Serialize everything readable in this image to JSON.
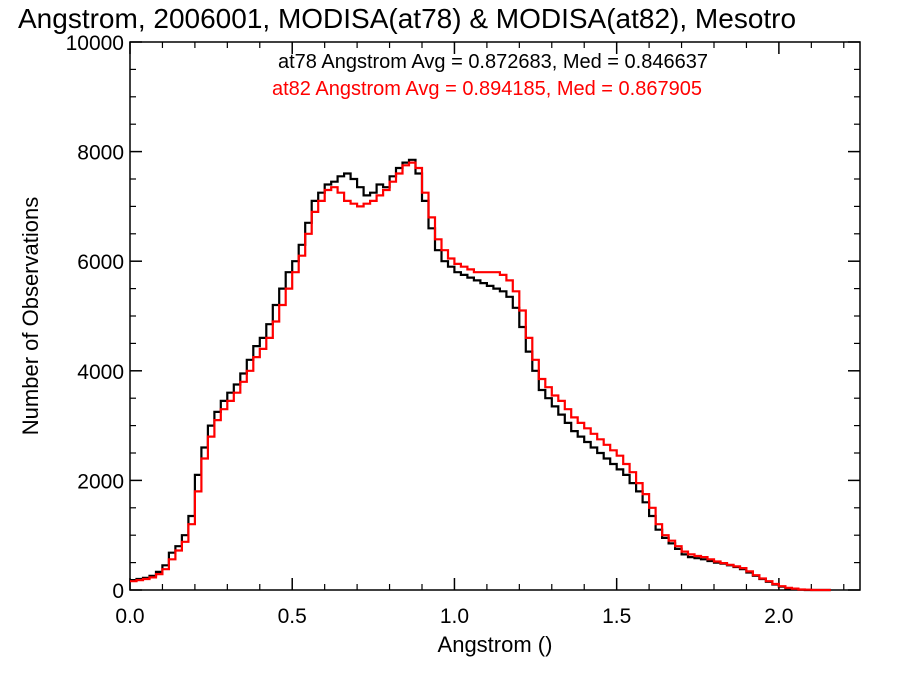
{
  "chart_data": {
    "type": "line",
    "step": true,
    "title": "Angstrom, 2006001, MODISA(at78) & MODISA(at82), Mesotro",
    "xlabel": "Angstrom ()",
    "ylabel": "Number of Observations",
    "xlim": [
      0.0,
      2.25
    ],
    "ylim": [
      0,
      10000
    ],
    "x_ticks": [
      0.0,
      0.5,
      1.0,
      1.5,
      2.0
    ],
    "x_tick_labels": [
      "0.0",
      "0.5",
      "1.0",
      "1.5",
      "2.0"
    ],
    "y_ticks": [
      0,
      2000,
      4000,
      6000,
      8000,
      10000
    ],
    "y_tick_labels": [
      "0",
      "2000",
      "4000",
      "6000",
      "8000",
      "10000"
    ],
    "grid": false,
    "annotations": [
      {
        "text": "at78 Angstrom Avg = 0.872683, Med = 0.846637",
        "color": "#000000"
      },
      {
        "text": "at82 Angstrom Avg = 0.894185, Med = 0.867905",
        "color": "#ff0000"
      }
    ],
    "series": [
      {
        "color": "#000000",
        "x": [
          0.0,
          0.02,
          0.04,
          0.06,
          0.08,
          0.1,
          0.12,
          0.14,
          0.16,
          0.18,
          0.2,
          0.22,
          0.24,
          0.26,
          0.28,
          0.3,
          0.32,
          0.34,
          0.36,
          0.38,
          0.4,
          0.42,
          0.44,
          0.46,
          0.48,
          0.5,
          0.52,
          0.54,
          0.56,
          0.58,
          0.6,
          0.62,
          0.64,
          0.66,
          0.68,
          0.7,
          0.72,
          0.74,
          0.76,
          0.78,
          0.8,
          0.82,
          0.84,
          0.86,
          0.88,
          0.9,
          0.92,
          0.94,
          0.96,
          0.98,
          1.0,
          1.02,
          1.04,
          1.06,
          1.08,
          1.1,
          1.12,
          1.14,
          1.16,
          1.18,
          1.2,
          1.22,
          1.24,
          1.26,
          1.28,
          1.3,
          1.32,
          1.34,
          1.36,
          1.38,
          1.4,
          1.42,
          1.44,
          1.46,
          1.48,
          1.5,
          1.52,
          1.54,
          1.56,
          1.58,
          1.6,
          1.62,
          1.64,
          1.66,
          1.68,
          1.7,
          1.72,
          1.74,
          1.76,
          1.78,
          1.8,
          1.82,
          1.84,
          1.86,
          1.88,
          1.9,
          1.92,
          1.94,
          1.96,
          1.98,
          2.0,
          2.02,
          2.04,
          2.06,
          2.08,
          2.1,
          2.12,
          2.14
        ],
        "y": [
          180,
          200,
          220,
          260,
          330,
          450,
          680,
          800,
          1000,
          1350,
          2100,
          2600,
          3000,
          3250,
          3450,
          3600,
          3750,
          3950,
          4200,
          4450,
          4600,
          4850,
          5200,
          5500,
          5800,
          6000,
          6300,
          6700,
          7100,
          7250,
          7400,
          7450,
          7550,
          7600,
          7500,
          7350,
          7200,
          7250,
          7400,
          7350,
          7550,
          7700,
          7800,
          7850,
          7600,
          7100,
          6600,
          6200,
          6000,
          5900,
          5800,
          5750,
          5700,
          5650,
          5600,
          5550,
          5500,
          5450,
          5350,
          5150,
          4800,
          4350,
          4000,
          3650,
          3500,
          3350,
          3200,
          3050,
          2900,
          2800,
          2700,
          2600,
          2500,
          2400,
          2300,
          2200,
          2100,
          1950,
          1800,
          1600,
          1350,
          1100,
          950,
          850,
          750,
          650,
          600,
          580,
          560,
          530,
          500,
          480,
          450,
          420,
          380,
          320,
          260,
          200,
          150,
          100,
          60,
          30,
          15,
          5,
          0,
          0,
          0,
          0
        ]
      },
      {
        "color": "#ff0000",
        "x": [
          0.0,
          0.02,
          0.04,
          0.06,
          0.08,
          0.1,
          0.12,
          0.14,
          0.16,
          0.18,
          0.2,
          0.22,
          0.24,
          0.26,
          0.28,
          0.3,
          0.32,
          0.34,
          0.36,
          0.38,
          0.4,
          0.42,
          0.44,
          0.46,
          0.48,
          0.5,
          0.52,
          0.54,
          0.56,
          0.58,
          0.6,
          0.62,
          0.64,
          0.66,
          0.68,
          0.7,
          0.72,
          0.74,
          0.76,
          0.78,
          0.8,
          0.82,
          0.84,
          0.86,
          0.88,
          0.9,
          0.92,
          0.94,
          0.96,
          0.98,
          1.0,
          1.02,
          1.04,
          1.06,
          1.08,
          1.1,
          1.12,
          1.14,
          1.16,
          1.18,
          1.2,
          1.22,
          1.24,
          1.26,
          1.28,
          1.3,
          1.32,
          1.34,
          1.36,
          1.38,
          1.4,
          1.42,
          1.44,
          1.46,
          1.48,
          1.5,
          1.52,
          1.54,
          1.56,
          1.58,
          1.6,
          1.62,
          1.64,
          1.66,
          1.68,
          1.7,
          1.72,
          1.74,
          1.76,
          1.78,
          1.8,
          1.82,
          1.84,
          1.86,
          1.88,
          1.9,
          1.92,
          1.94,
          1.96,
          1.98,
          2.0,
          2.02,
          2.04,
          2.06,
          2.08,
          2.1,
          2.12,
          2.14
        ],
        "y": [
          160,
          180,
          200,
          230,
          290,
          380,
          560,
          720,
          880,
          1200,
          1800,
          2400,
          2800,
          3100,
          3300,
          3450,
          3600,
          3800,
          4000,
          4250,
          4400,
          4600,
          4900,
          5200,
          5500,
          5800,
          6100,
          6500,
          6900,
          7100,
          7300,
          7350,
          7250,
          7100,
          7050,
          7000,
          7050,
          7100,
          7200,
          7300,
          7450,
          7600,
          7750,
          7800,
          7700,
          7250,
          6800,
          6400,
          6200,
          6050,
          5950,
          5900,
          5850,
          5800,
          5800,
          5800,
          5800,
          5750,
          5650,
          5450,
          5100,
          4600,
          4200,
          3850,
          3700,
          3550,
          3450,
          3300,
          3150,
          3050,
          2950,
          2850,
          2750,
          2650,
          2550,
          2450,
          2300,
          2150,
          1950,
          1750,
          1500,
          1200,
          1000,
          900,
          800,
          700,
          650,
          620,
          600,
          560,
          520,
          490,
          460,
          430,
          400,
          340,
          270,
          210,
          160,
          110,
          70,
          40,
          25,
          10,
          5,
          0,
          0,
          0
        ]
      }
    ]
  }
}
